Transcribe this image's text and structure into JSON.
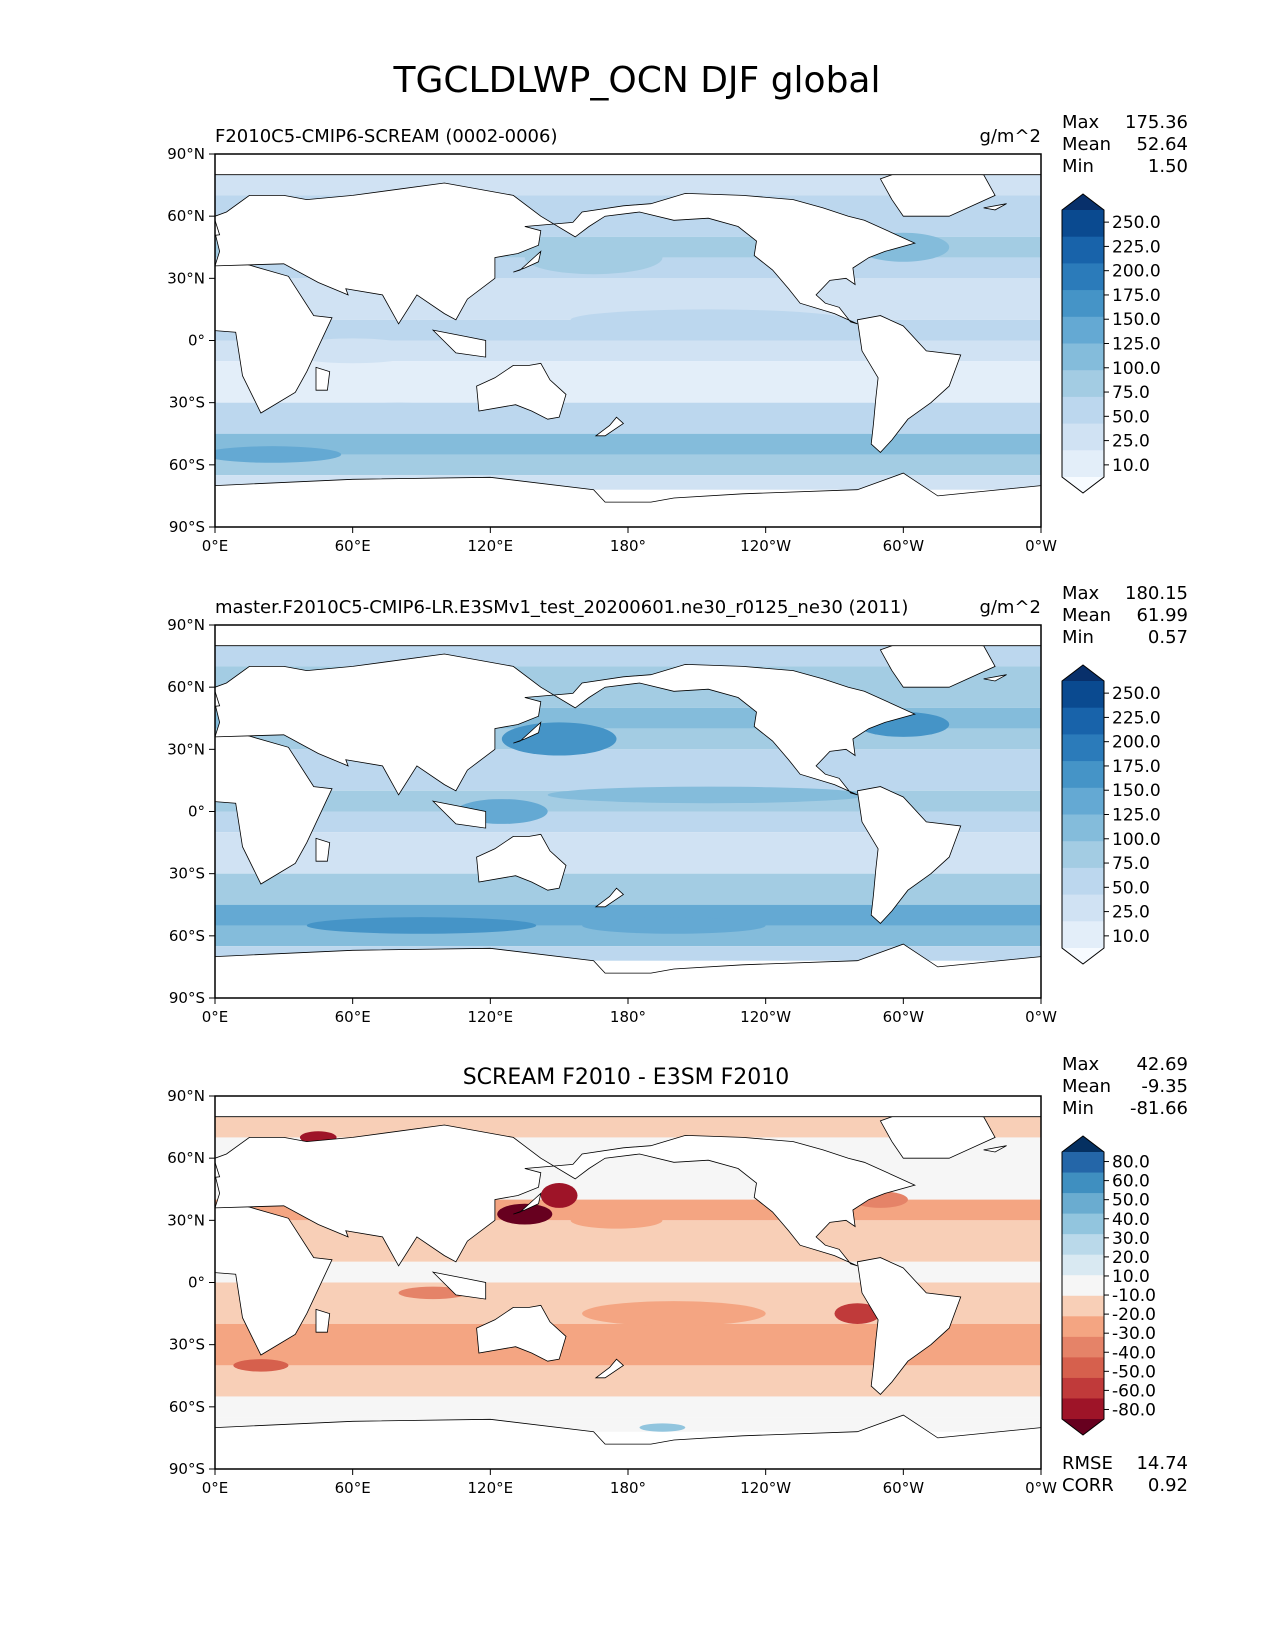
{
  "figure": {
    "title": "TGCLDLWP_OCN DJF global"
  },
  "chart_data": [
    {
      "type": "heatmap",
      "subtitle": "F2010C5-CMIP6-SCREAM (0002-0006)",
      "units": "g/m^2",
      "colormap": "blues",
      "colorbar_levels": [
        10.0,
        25.0,
        50.0,
        75.0,
        100.0,
        125.0,
        150.0,
        175.0,
        200.0,
        225.0,
        250.0
      ],
      "colorbar_labels": [
        "10.0",
        "25.0",
        "50.0",
        "75.0",
        "100.0",
        "125.0",
        "150.0",
        "175.0",
        "200.0",
        "225.0",
        "250.0"
      ],
      "stats": [
        {
          "label": "Max",
          "value": "175.36"
        },
        {
          "label": "Mean",
          "value": "52.64"
        },
        {
          "label": "Min",
          "value": "1.50"
        }
      ],
      "xlim": [
        0,
        360
      ],
      "ylim": [
        -90,
        90
      ]
    },
    {
      "type": "heatmap",
      "subtitle": "master.F2010C5-CMIP6-LR.E3SMv1_test_20200601.ne30_r0125_ne30 (2011)",
      "units": "g/m^2",
      "colormap": "blues",
      "colorbar_levels": [
        10.0,
        25.0,
        50.0,
        75.0,
        100.0,
        125.0,
        150.0,
        175.0,
        200.0,
        225.0,
        250.0
      ],
      "colorbar_labels": [
        "10.0",
        "25.0",
        "50.0",
        "75.0",
        "100.0",
        "125.0",
        "150.0",
        "175.0",
        "200.0",
        "225.0",
        "250.0"
      ],
      "stats": [
        {
          "label": "Max",
          "value": "180.15"
        },
        {
          "label": "Mean",
          "value": "61.99"
        },
        {
          "label": "Min",
          "value": "0.57"
        }
      ],
      "xlim": [
        0,
        360
      ],
      "ylim": [
        -90,
        90
      ]
    },
    {
      "type": "heatmap",
      "title": "SCREAM F2010 - E3SM F2010",
      "units": "",
      "colormap": "diverging",
      "colorbar_levels": [
        -80,
        -60,
        -50,
        -40,
        -30,
        -20,
        -10,
        10,
        20,
        30,
        40,
        50,
        60,
        80
      ],
      "colorbar_labels": [
        "-80.0",
        "-60.0",
        "-50.0",
        "-40.0",
        "-30.0",
        "-20.0",
        "-10.0",
        "10.0",
        "20.0",
        "30.0",
        "40.0",
        "50.0",
        "60.0",
        "80.0"
      ],
      "stats": [
        {
          "label": "Max",
          "value": "42.69"
        },
        {
          "label": "Mean",
          "value": "-9.35"
        },
        {
          "label": "Min",
          "value": "-81.66"
        }
      ],
      "bottom_stats": [
        {
          "label": "RMSE",
          "value": "14.74"
        },
        {
          "label": "CORR",
          "value": "0.92"
        }
      ],
      "xlim": [
        0,
        360
      ],
      "ylim": [
        -90,
        90
      ]
    }
  ],
  "axes": {
    "x_ticks": [
      "0°E",
      "60°E",
      "120°E",
      "180°",
      "120°W",
      "60°W",
      "0°W"
    ],
    "y_ticks": [
      "90°N",
      "60°N",
      "30°N",
      "0°",
      "30°S",
      "60°S",
      "90°S"
    ]
  },
  "colors": {
    "blues": [
      "#f7fbff",
      "#e3eef9",
      "#d0e2f3",
      "#bcd7ee",
      "#a3cce3",
      "#84bcdb",
      "#64a9d3",
      "#4594c7",
      "#2b7bba",
      "#1863aa",
      "#0a4a90",
      "#08306b"
    ],
    "diverging": [
      "#67001f",
      "#9e1428",
      "#c03a3a",
      "#d6604d",
      "#e58368",
      "#f4a582",
      "#f8cfb7",
      "#f6f6f6",
      "#d9e9f2",
      "#bad9ea",
      "#92c5de",
      "#6aacd0",
      "#3f8fc0",
      "#2466a8",
      "#053061"
    ],
    "land": "#ffffff",
    "coast": "#000000"
  }
}
